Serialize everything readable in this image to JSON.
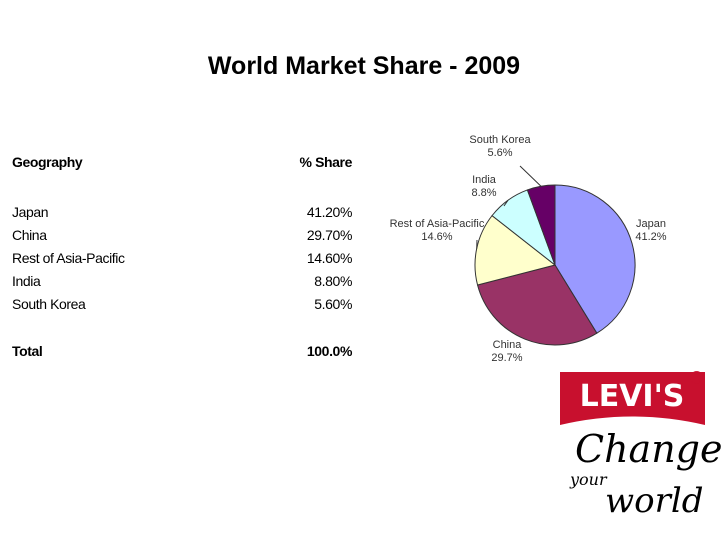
{
  "title": "World Market Share - 2009",
  "table": {
    "header": [
      "Geography",
      "% Share"
    ],
    "rows": [
      [
        "Japan",
        "41.20%"
      ],
      [
        "China",
        "29.70%"
      ],
      [
        "Rest of Asia-Pacific",
        "14.60%"
      ],
      [
        "India",
        "8.80%"
      ],
      [
        "South Korea",
        "5.60%"
      ]
    ],
    "total": [
      "Total",
      "100.0%"
    ]
  },
  "chart_data": {
    "type": "pie",
    "categories": [
      "Japan",
      "China",
      "Rest of Asia-Pacific",
      "India",
      "South Korea"
    ],
    "values": [
      41.2,
      29.7,
      14.6,
      8.8,
      5.6
    ],
    "value_labels": [
      "41.2%",
      "29.7%",
      "14.6%",
      "8.8%",
      "5.6%"
    ],
    "colors": [
      "#9999ff",
      "#993366",
      "#ffffcc",
      "#ccffff",
      "#660066"
    ]
  },
  "logo": {
    "brand": "LEVI'S",
    "registered": "®",
    "line1": "Change",
    "line2": "your",
    "line3": "world"
  }
}
